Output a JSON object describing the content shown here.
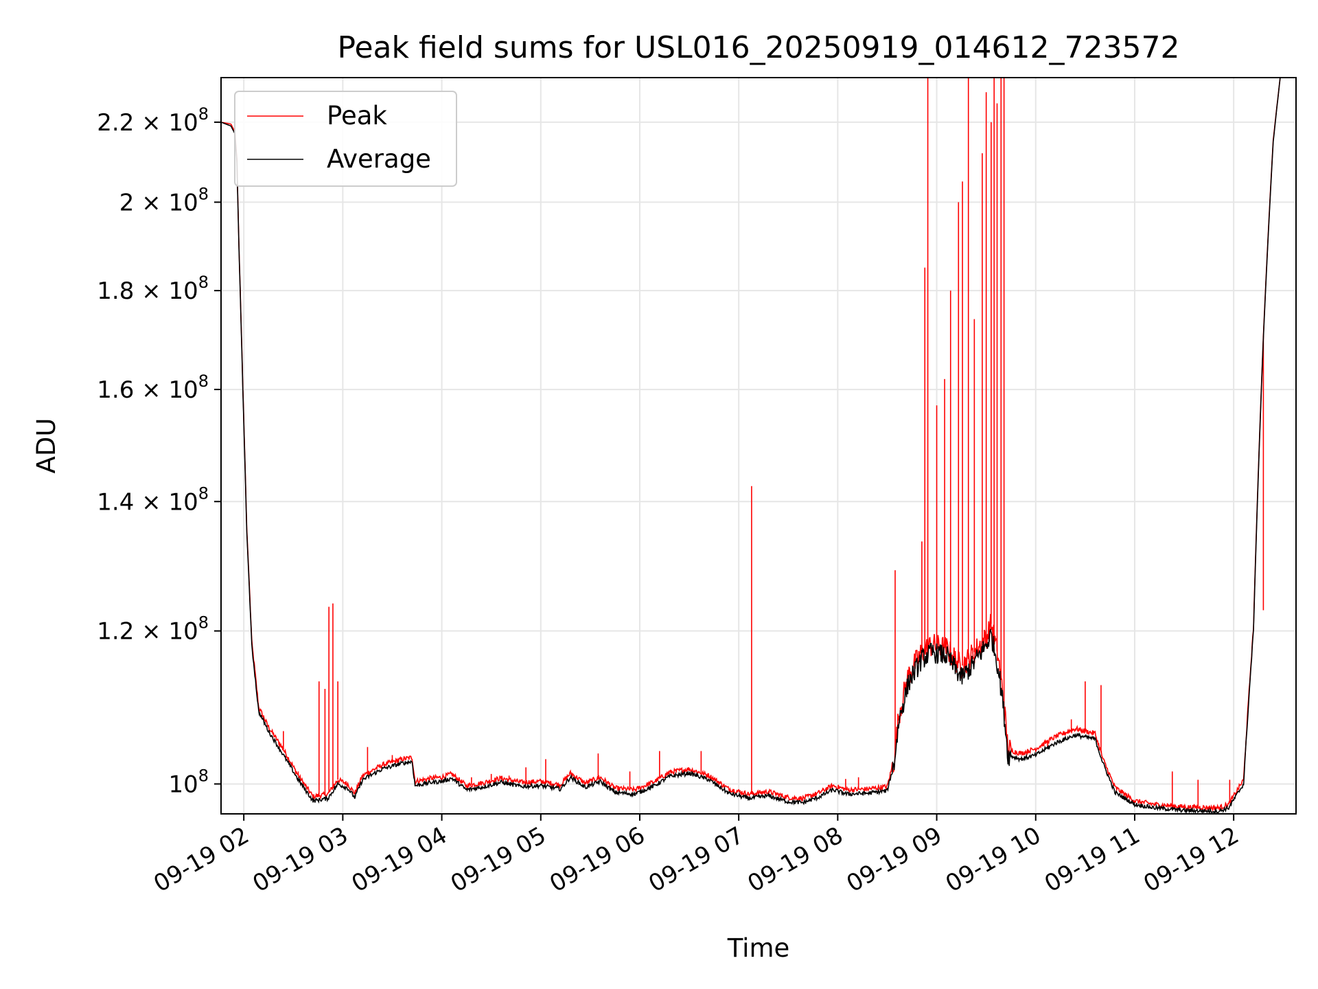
{
  "chart_data": {
    "type": "line",
    "title": "Peak field sums for USL016_20250919_014612_723572",
    "xlabel": "Time",
    "ylabel": "ADU",
    "yscale": "log",
    "x_units": "hours since 2025-09-19 00:00",
    "xlim": [
      1.77,
      12.63
    ],
    "ylim": [
      96500000,
      232000000
    ],
    "grid": true,
    "legend": {
      "location": "upper left",
      "entries": [
        "Peak",
        "Average"
      ]
    },
    "x_ticks": [
      {
        "value": 2,
        "label": "09-19 02"
      },
      {
        "value": 3,
        "label": "09-19 03"
      },
      {
        "value": 4,
        "label": "09-19 04"
      },
      {
        "value": 5,
        "label": "09-19 05"
      },
      {
        "value": 6,
        "label": "09-19 06"
      },
      {
        "value": 7,
        "label": "09-19 07"
      },
      {
        "value": 8,
        "label": "09-19 08"
      },
      {
        "value": 9,
        "label": "09-19 09"
      },
      {
        "value": 10,
        "label": "09-19 10"
      },
      {
        "value": 11,
        "label": "09-19 11"
      },
      {
        "value": 12,
        "label": "09-19 12"
      }
    ],
    "y_ticks": [
      {
        "value": 100000000,
        "mantissa": "",
        "exponent": "8",
        "is_power": true
      },
      {
        "value": 120000000,
        "mantissa": "1.2",
        "exponent": "8",
        "is_power": false
      },
      {
        "value": 140000000,
        "mantissa": "1.4",
        "exponent": "8",
        "is_power": false
      },
      {
        "value": 160000000,
        "mantissa": "1.6",
        "exponent": "8",
        "is_power": false
      },
      {
        "value": 180000000,
        "mantissa": "1.8",
        "exponent": "8",
        "is_power": false
      },
      {
        "value": 200000000,
        "mantissa": "2",
        "exponent": "8",
        "is_power": false
      },
      {
        "value": 220000000,
        "mantissa": "2.2",
        "exponent": "8",
        "is_power": false
      }
    ],
    "series": [
      {
        "name": "Average",
        "color": "#000000",
        "points": [
          [
            1.77,
            220000000
          ],
          [
            1.87,
            219000000
          ],
          [
            1.91,
            217000000
          ],
          [
            1.93,
            210000000
          ],
          [
            1.95,
            190000000
          ],
          [
            1.99,
            160000000
          ],
          [
            2.03,
            135000000
          ],
          [
            2.08,
            118000000
          ],
          [
            2.15,
            109000000
          ],
          [
            2.25,
            106500000
          ],
          [
            2.4,
            103500000
          ],
          [
            2.55,
            100500000
          ],
          [
            2.7,
            98000000
          ],
          [
            2.85,
            98300000
          ],
          [
            2.95,
            100000000
          ],
          [
            3.05,
            99500000
          ],
          [
            3.12,
            98400000
          ],
          [
            3.2,
            100500000
          ],
          [
            3.4,
            101800000
          ],
          [
            3.6,
            102500000
          ],
          [
            3.7,
            102700000
          ],
          [
            3.73,
            99800000
          ],
          [
            3.9,
            100200000
          ],
          [
            4.0,
            100300000
          ],
          [
            4.1,
            100700000
          ],
          [
            4.25,
            99300000
          ],
          [
            4.4,
            99600000
          ],
          [
            4.6,
            100200000
          ],
          [
            4.8,
            99700000
          ],
          [
            5.0,
            99800000
          ],
          [
            5.2,
            99400000
          ],
          [
            5.3,
            100800000
          ],
          [
            5.45,
            99600000
          ],
          [
            5.6,
            100300000
          ],
          [
            5.75,
            99000000
          ],
          [
            5.95,
            98800000
          ],
          [
            6.15,
            99800000
          ],
          [
            6.3,
            100900000
          ],
          [
            6.5,
            101300000
          ],
          [
            6.7,
            100500000
          ],
          [
            6.9,
            98900000
          ],
          [
            7.1,
            98300000
          ],
          [
            7.3,
            98600000
          ],
          [
            7.5,
            97900000
          ],
          [
            7.65,
            97800000
          ],
          [
            7.8,
            98400000
          ],
          [
            7.95,
            99300000
          ],
          [
            8.1,
            98800000
          ],
          [
            8.3,
            98900000
          ],
          [
            8.5,
            99200000
          ],
          [
            8.57,
            102500000
          ],
          [
            8.62,
            108000000
          ],
          [
            8.72,
            113000000
          ],
          [
            8.85,
            116000000
          ],
          [
            8.95,
            117000000
          ],
          [
            9.1,
            116500000
          ],
          [
            9.25,
            113500000
          ],
          [
            9.35,
            115000000
          ],
          [
            9.5,
            118000000
          ],
          [
            9.55,
            119500000
          ],
          [
            9.62,
            115000000
          ],
          [
            9.67,
            110000000
          ],
          [
            9.72,
            103500000
          ],
          [
            9.85,
            103000000
          ],
          [
            10.0,
            103500000
          ],
          [
            10.2,
            105000000
          ],
          [
            10.4,
            106000000
          ],
          [
            10.6,
            105500000
          ],
          [
            10.68,
            102500000
          ],
          [
            10.8,
            99000000
          ],
          [
            11.0,
            97600000
          ],
          [
            11.2,
            97200000
          ],
          [
            11.5,
            96900000
          ],
          [
            11.85,
            96800000
          ],
          [
            11.95,
            97200000
          ],
          [
            12.1,
            100000000
          ],
          [
            12.2,
            120000000
          ],
          [
            12.3,
            170000000
          ],
          [
            12.4,
            215000000
          ],
          [
            12.47,
            232000000
          ]
        ]
      },
      {
        "name": "Peak",
        "color": "#ff0000",
        "points": [
          [
            1.77,
            220000000
          ],
          [
            1.87,
            219500000
          ],
          [
            1.91,
            217500000
          ],
          [
            1.93,
            210500000
          ],
          [
            1.95,
            190500000
          ],
          [
            1.99,
            160500000
          ],
          [
            2.03,
            135500000
          ],
          [
            2.08,
            118500000
          ],
          [
            2.15,
            109600000
          ],
          [
            2.25,
            107000000
          ],
          [
            2.4,
            104200000
          ],
          [
            2.55,
            101000000
          ],
          [
            2.7,
            98500000
          ],
          [
            2.85,
            98800000
          ],
          [
            2.95,
            100500000
          ],
          [
            3.05,
            100000000
          ],
          [
            3.12,
            98900000
          ],
          [
            3.2,
            101000000
          ],
          [
            3.4,
            102300000
          ],
          [
            3.6,
            103000000
          ],
          [
            3.7,
            103200000
          ],
          [
            3.73,
            100300000
          ],
          [
            3.9,
            100700000
          ],
          [
            4.0,
            100800000
          ],
          [
            4.1,
            101200000
          ],
          [
            4.25,
            99800000
          ],
          [
            4.4,
            100100000
          ],
          [
            4.6,
            100700000
          ],
          [
            4.8,
            100200000
          ],
          [
            5.0,
            100300000
          ],
          [
            5.2,
            99900000
          ],
          [
            5.3,
            101300000
          ],
          [
            5.45,
            100100000
          ],
          [
            5.6,
            100800000
          ],
          [
            5.75,
            99500000
          ],
          [
            5.95,
            99300000
          ],
          [
            6.15,
            100300000
          ],
          [
            6.3,
            101400000
          ],
          [
            6.5,
            101800000
          ],
          [
            6.7,
            101000000
          ],
          [
            6.9,
            99400000
          ],
          [
            7.1,
            98800000
          ],
          [
            7.3,
            99100000
          ],
          [
            7.5,
            98400000
          ],
          [
            7.65,
            98300000
          ],
          [
            7.8,
            98900000
          ],
          [
            7.95,
            99800000
          ],
          [
            8.1,
            99300000
          ],
          [
            8.3,
            99400000
          ],
          [
            8.5,
            99700000
          ],
          [
            8.57,
            103000000
          ],
          [
            8.62,
            108800000
          ],
          [
            8.72,
            114000000
          ],
          [
            8.85,
            117000000
          ],
          [
            8.95,
            118000000
          ],
          [
            9.1,
            117500000
          ],
          [
            9.25,
            115000000
          ],
          [
            9.35,
            116500000
          ],
          [
            9.5,
            119000000
          ],
          [
            9.55,
            121000000
          ],
          [
            9.62,
            116500000
          ],
          [
            9.67,
            111000000
          ],
          [
            9.72,
            104200000
          ],
          [
            9.85,
            103700000
          ],
          [
            10.0,
            104300000
          ],
          [
            10.2,
            105800000
          ],
          [
            10.4,
            106800000
          ],
          [
            10.6,
            106200000
          ],
          [
            10.68,
            103000000
          ],
          [
            10.8,
            99600000
          ],
          [
            11.0,
            98000000
          ],
          [
            11.2,
            97600000
          ],
          [
            11.5,
            97300000
          ],
          [
            11.85,
            97200000
          ],
          [
            11.95,
            97600000
          ],
          [
            12.1,
            100500000
          ],
          [
            12.2,
            120500000
          ],
          [
            12.3,
            170500000
          ],
          [
            12.4,
            215500000
          ],
          [
            12.47,
            232000000
          ]
        ],
        "spikes": [
          [
            2.4,
            106500000
          ],
          [
            2.55,
            101500000
          ],
          [
            2.76,
            113000000
          ],
          [
            2.82,
            112000000
          ],
          [
            2.86,
            123500000
          ],
          [
            2.9,
            124000000
          ],
          [
            2.95,
            113000000
          ],
          [
            3.25,
            104500000
          ],
          [
            3.5,
            103500000
          ],
          [
            4.3,
            100800000
          ],
          [
            4.5,
            101200000
          ],
          [
            4.68,
            101000000
          ],
          [
            4.85,
            102000000
          ],
          [
            5.05,
            103000000
          ],
          [
            5.58,
            103700000
          ],
          [
            5.9,
            101500000
          ],
          [
            6.2,
            104000000
          ],
          [
            6.62,
            104000000
          ],
          [
            7.13,
            142600000
          ],
          [
            7.22,
            99000000
          ],
          [
            8.08,
            100600000
          ],
          [
            8.21,
            100800000
          ],
          [
            8.58,
            129000000
          ],
          [
            8.85,
            133500000
          ],
          [
            8.88,
            185000000
          ],
          [
            8.91,
            232000000
          ],
          [
            9.0,
            157000000
          ],
          [
            9.08,
            162000000
          ],
          [
            9.14,
            180000000
          ],
          [
            9.22,
            200000000
          ],
          [
            9.26,
            205000000
          ],
          [
            9.32,
            232000000
          ],
          [
            9.38,
            174000000
          ],
          [
            9.46,
            212000000
          ],
          [
            9.5,
            228000000
          ],
          [
            9.55,
            220000000
          ],
          [
            9.58,
            232000000
          ],
          [
            9.61,
            225000000
          ],
          [
            9.65,
            232000000
          ],
          [
            9.68,
            232000000
          ],
          [
            10.12,
            104500000
          ],
          [
            10.36,
            108000000
          ],
          [
            10.5,
            113000000
          ],
          [
            10.66,
            112500000
          ],
          [
            11.38,
            101500000
          ],
          [
            11.64,
            100500000
          ],
          [
            11.96,
            100500000
          ],
          [
            12.3,
            123000000
          ]
        ]
      }
    ]
  }
}
